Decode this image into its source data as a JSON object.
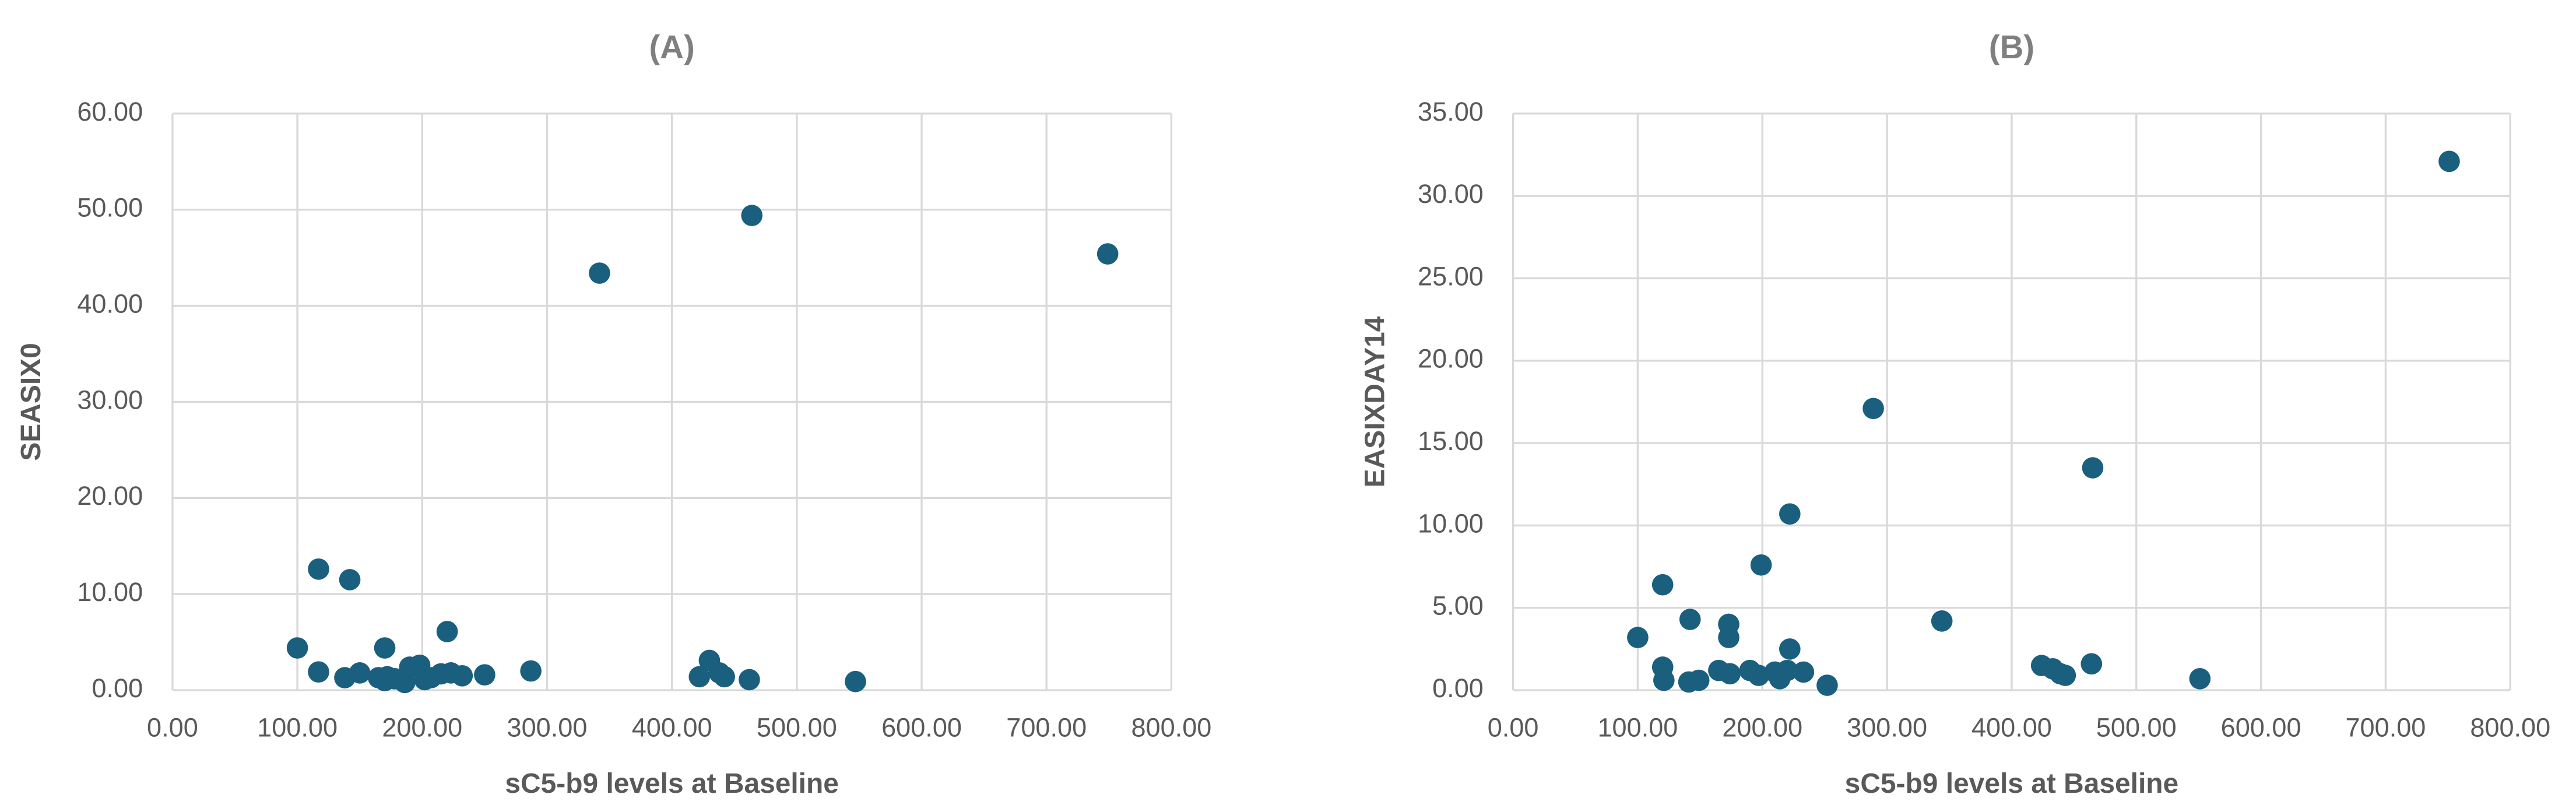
{
  "chart_data": [
    {
      "type": "scatter",
      "title": "(A)",
      "x_label": "sC5-b9 levels at Baseline",
      "y_label": "SEASIX0",
      "color": "#1b5f7e",
      "grid": true,
      "x": [
        100,
        117,
        117,
        142,
        138,
        150,
        165,
        170,
        170,
        172,
        178,
        186,
        190,
        198,
        202,
        207,
        215,
        220,
        223,
        232,
        250,
        287,
        342,
        464,
        749,
        430,
        422,
        438,
        442,
        462,
        547
      ],
      "y": [
        4.4,
        12.6,
        1.9,
        11.5,
        1.3,
        1.8,
        1.3,
        4.4,
        1.0,
        1.4,
        1.2,
        0.8,
        2.4,
        2.6,
        1.1,
        1.3,
        1.7,
        6.1,
        1.8,
        1.5,
        1.6,
        2.0,
        43.4,
        49.4,
        45.4,
        3.1,
        1.4,
        1.8,
        1.4,
        1.1,
        0.9
      ],
      "xlim": [
        0,
        800
      ],
      "ylim": [
        0,
        60
      ],
      "xticks": [
        {
          "value": 0,
          "label": "0.00"
        },
        {
          "value": 100,
          "label": "100.00"
        },
        {
          "value": 200,
          "label": "200.00"
        },
        {
          "value": 300,
          "label": "300.00"
        },
        {
          "value": 400,
          "label": "400.00"
        },
        {
          "value": 500,
          "label": "500.00"
        },
        {
          "value": 600,
          "label": "600.00"
        },
        {
          "value": 700,
          "label": "700.00"
        },
        {
          "value": 800,
          "label": "800.00"
        }
      ],
      "yticks": [
        {
          "value": 0,
          "label": "0.00"
        },
        {
          "value": 10,
          "label": "10.00"
        },
        {
          "value": 20,
          "label": "20.00"
        },
        {
          "value": 30,
          "label": "30.00"
        },
        {
          "value": 40,
          "label": "40.00"
        },
        {
          "value": 50,
          "label": "50.00"
        },
        {
          "value": 60,
          "label": "60.00"
        }
      ]
    },
    {
      "type": "scatter",
      "title": "(B)",
      "x_label": "sC5-b9 levels at Baseline",
      "y_label": "EASIXDAY14",
      "color": "#1b5f7e",
      "grid": true,
      "x": [
        100,
        120,
        120,
        121,
        142,
        141,
        149,
        173,
        173,
        165,
        174,
        199,
        190,
        197,
        210,
        214,
        220,
        222,
        233,
        222,
        252,
        289,
        344,
        424,
        433,
        439,
        443,
        465,
        464,
        551,
        751
      ],
      "y": [
        3.2,
        6.4,
        1.4,
        0.6,
        4.3,
        0.5,
        0.6,
        4.0,
        3.2,
        1.2,
        1.0,
        7.6,
        1.2,
        0.9,
        1.1,
        0.7,
        1.2,
        10.7,
        1.1,
        2.5,
        0.3,
        17.1,
        4.2,
        1.5,
        1.3,
        1.0,
        0.9,
        13.5,
        1.6,
        0.7,
        32.1
      ],
      "xlim": [
        0,
        800
      ],
      "ylim": [
        0,
        35
      ],
      "xticks": [
        {
          "value": 0,
          "label": "0.00"
        },
        {
          "value": 100,
          "label": "100.00"
        },
        {
          "value": 200,
          "label": "200.00"
        },
        {
          "value": 300,
          "label": "300.00"
        },
        {
          "value": 400,
          "label": "400.00"
        },
        {
          "value": 500,
          "label": "500.00"
        },
        {
          "value": 600,
          "label": "600.00"
        },
        {
          "value": 700,
          "label": "700.00"
        },
        {
          "value": 800,
          "label": "800.00"
        }
      ],
      "yticks": [
        {
          "value": 0,
          "label": "0.00"
        },
        {
          "value": 5,
          "label": "5.00"
        },
        {
          "value": 10,
          "label": "10.00"
        },
        {
          "value": 15,
          "label": "15.00"
        },
        {
          "value": 20,
          "label": "20.00"
        },
        {
          "value": 25,
          "label": "25.00"
        },
        {
          "value": 30,
          "label": "30.00"
        },
        {
          "value": 35,
          "label": "35.00"
        }
      ]
    }
  ]
}
